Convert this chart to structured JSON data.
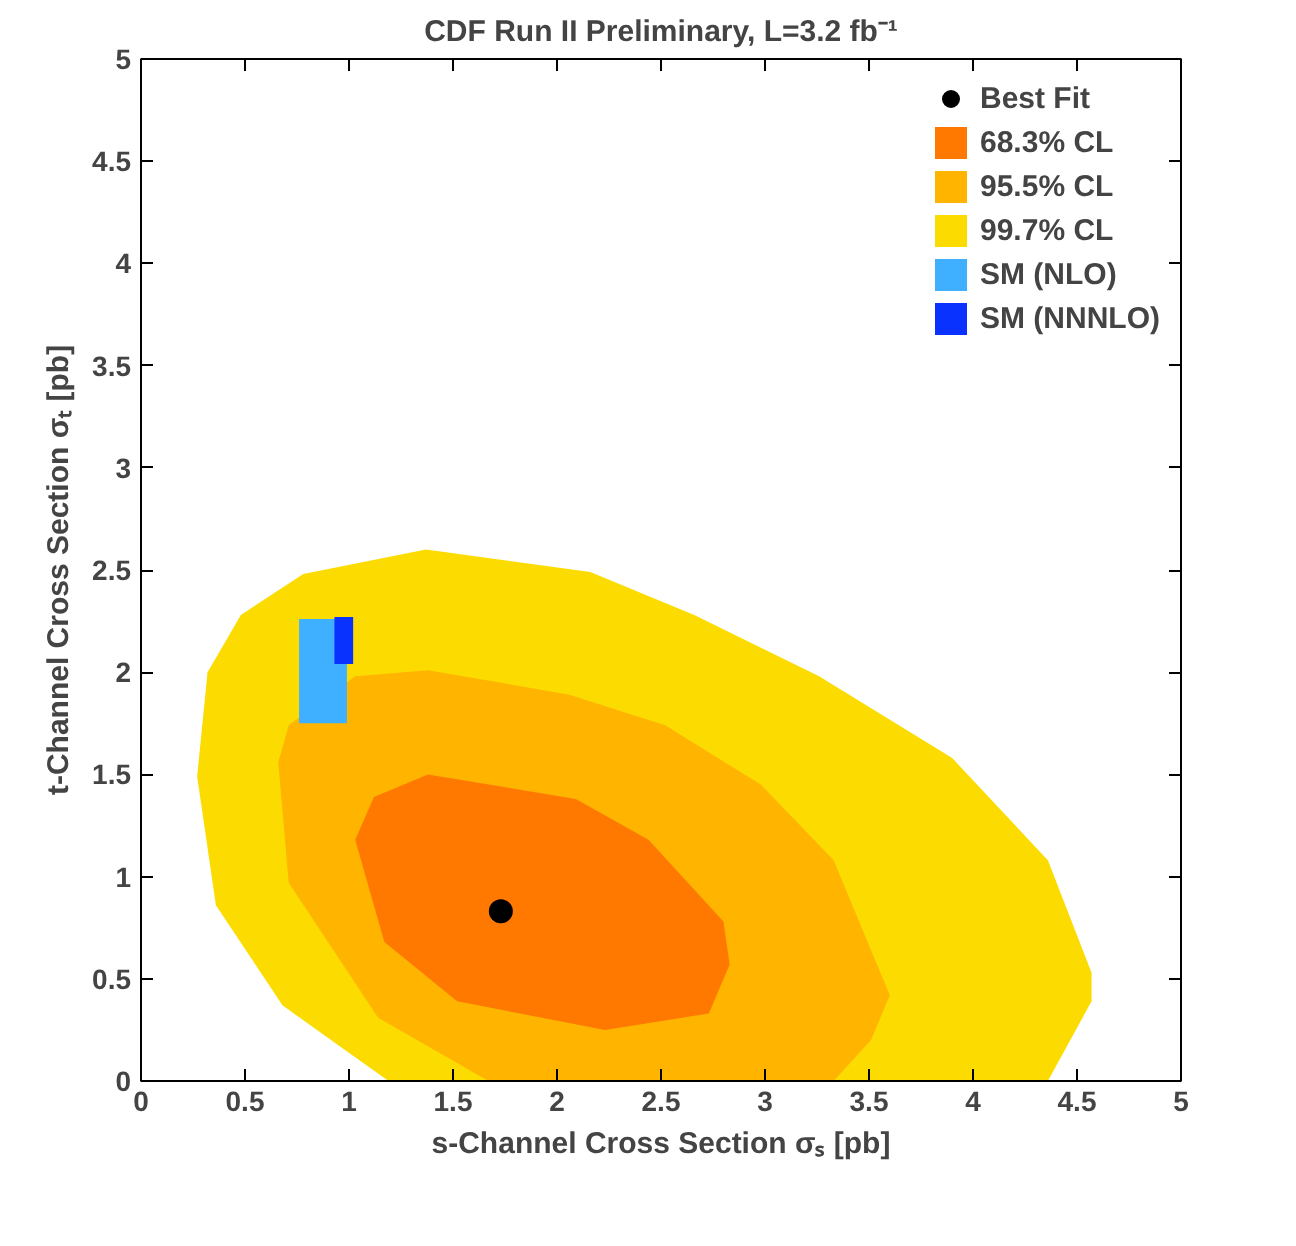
{
  "chart_data": {
    "type": "area",
    "title": "CDF Run II Preliminary, L=3.2 fb⁻¹",
    "xlabel": "s-Channel Cross Section σₛ [pb]",
    "ylabel": "t-Channel Cross Section σₜ [pb]",
    "xlim": [
      0,
      5
    ],
    "ylim": [
      0,
      5
    ],
    "xticks": [
      0,
      0.5,
      1,
      1.5,
      2,
      2.5,
      3,
      3.5,
      4,
      4.5,
      5
    ],
    "yticks": [
      0,
      0.5,
      1,
      1.5,
      2,
      2.5,
      3,
      3.5,
      4,
      4.5,
      5
    ],
    "grid": false,
    "legend": "top right",
    "series": [
      {
        "name": "99.7% CL",
        "color": "#fcdc00",
        "x": [
          1.37,
          2.16,
          2.66,
          3.26,
          3.9,
          4.36,
          4.57,
          4.57,
          4.36,
          1.19,
          0.68,
          0.36,
          0.27,
          0.32,
          0.48,
          0.78
        ],
        "values": [
          2.6,
          2.49,
          2.28,
          1.98,
          1.58,
          1.08,
          0.53,
          0.39,
          0,
          0,
          0.37,
          0.86,
          1.49,
          2.0,
          2.28,
          2.48
        ]
      },
      {
        "name": "95.5% CL",
        "color": "#ffb400",
        "x": [
          1.38,
          2.06,
          2.52,
          2.98,
          3.33,
          3.6,
          3.51,
          3.33,
          1.67,
          1.14,
          0.71,
          0.66,
          0.71,
          1.03
        ],
        "values": [
          2.01,
          1.89,
          1.74,
          1.45,
          1.08,
          0.42,
          0.2,
          0,
          0,
          0.31,
          0.97,
          1.56,
          1.74,
          1.98
        ]
      },
      {
        "name": "68.3% CL",
        "color": "#ff7800",
        "x": [
          1.38,
          2.09,
          2.44,
          2.8,
          2.83,
          2.73,
          2.23,
          1.52,
          1.17,
          1.03,
          1.12
        ],
        "values": [
          1.5,
          1.38,
          1.18,
          0.78,
          0.57,
          0.33,
          0.25,
          0.39,
          0.68,
          1.18,
          1.39
        ]
      },
      {
        "name": "SM (NLO)",
        "color": "#3fb0ff",
        "x": [
          0.76,
          0.99,
          0.99,
          0.76
        ],
        "values": [
          1.75,
          1.75,
          2.26,
          2.26
        ]
      },
      {
        "name": "SM (NNNLO)",
        "color": "#0a32ff",
        "x": [
          0.93,
          1.02,
          1.02,
          0.93
        ],
        "values": [
          2.04,
          2.04,
          2.27,
          2.27
        ]
      },
      {
        "name": "Best Fit",
        "type": "scatter",
        "marker": "circle",
        "color": "#000000",
        "x": [
          1.73
        ],
        "values": [
          0.83
        ]
      }
    ]
  }
}
